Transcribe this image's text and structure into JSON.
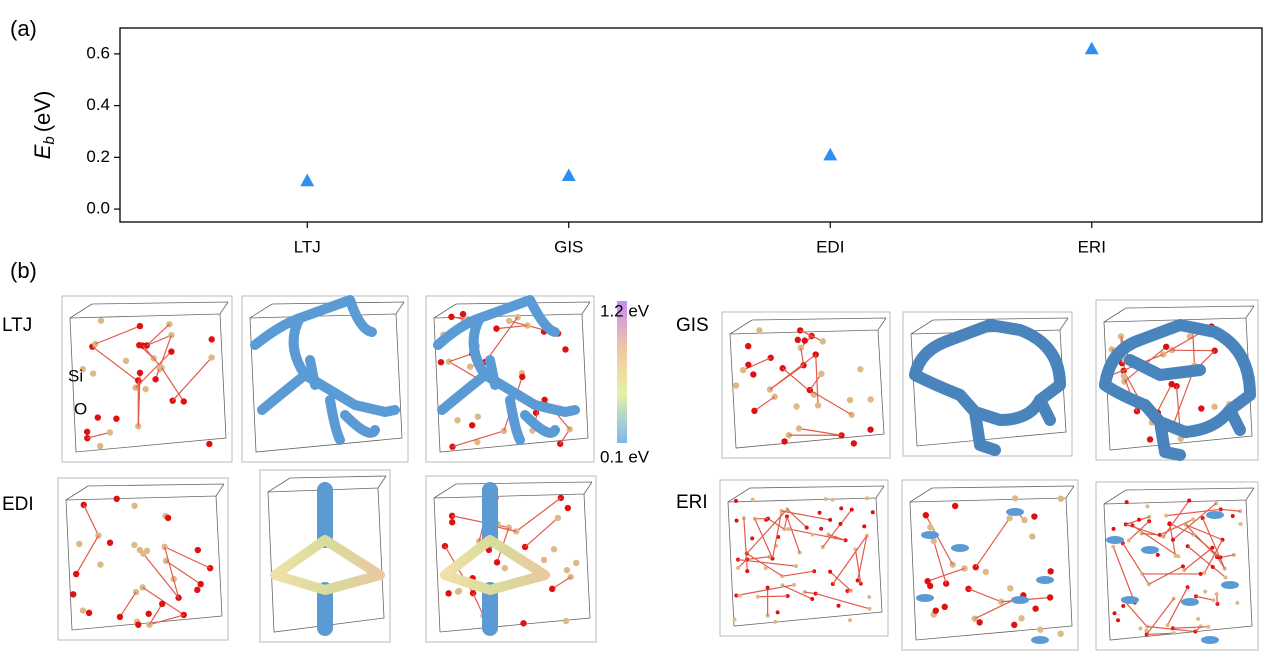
{
  "chart_data": {
    "type": "scatter",
    "categories": [
      "LTJ",
      "GIS",
      "EDI",
      "ERI"
    ],
    "values": [
      0.11,
      0.13,
      0.21,
      0.62
    ],
    "color": "#2f8ef0",
    "marker": "triangle",
    "ylim": [
      -0.05,
      0.7
    ],
    "yticks": [
      {
        "value": 0,
        "label": "0.0"
      },
      0.2,
      0.4,
      0.6
    ],
    "y_label": {
      "symbol": "E",
      "subscript": "b",
      "unit": "(eV)"
    },
    "panel_label": "(a)"
  },
  "panel_b": {
    "panel_label": "(b)",
    "structures": [
      "LTJ",
      "EDI",
      "GIS",
      "ERI"
    ],
    "atom_labels": [
      "Si",
      "O"
    ],
    "colorbar": {
      "max_label": "1.2 eV",
      "min_label": "0.1 eV"
    }
  }
}
